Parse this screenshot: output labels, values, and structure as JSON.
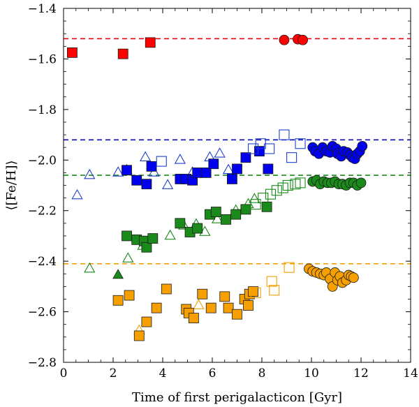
{
  "chart_data": {
    "type": "scatter",
    "title": "",
    "xlabel": "Time of first perigalacticon [Gyr]",
    "ylabel": "⟨[Fe/H]⟩",
    "xlim": [
      0,
      14
    ],
    "ylim": [
      -2.8,
      -1.4
    ],
    "xticks": [
      0,
      2,
      4,
      6,
      8,
      10,
      12,
      14
    ],
    "yticks": [
      -2.8,
      -2.6,
      -2.4,
      -2.2,
      -2.0,
      -1.8,
      -1.6,
      -1.4
    ],
    "xtick_labels": [
      "0",
      "2",
      "4",
      "6",
      "8",
      "10",
      "12",
      "14"
    ],
    "ytick_labels": [
      "−2.8",
      "−2.6",
      "−2.4",
      "−2.2",
      "−2.0",
      "−1.8",
      "−1.6",
      "−1.4"
    ],
    "grid": false,
    "legend": "none",
    "hlines": [
      {
        "name": "red-reference",
        "y": -1.52,
        "color": "#e8000b"
      },
      {
        "name": "blue-reference",
        "y": -1.92,
        "color": "#0a0ab4"
      },
      {
        "name": "green-reference",
        "y": -2.06,
        "color": "#1a8a1a"
      },
      {
        "name": "orange-reference",
        "y": -2.41,
        "color": "#f0a000"
      }
    ],
    "series": [
      {
        "name": "red-filled-squares",
        "marker": "square",
        "filled": true,
        "color": "#ff0000",
        "x": [
          0.35,
          2.4,
          3.5
        ],
        "y": [
          -1.575,
          -1.58,
          -1.535
        ]
      },
      {
        "name": "red-filled-circles",
        "marker": "circle",
        "filled": true,
        "color": "#ff0000",
        "x": [
          8.9,
          9.45,
          9.65
        ],
        "y": [
          -1.525,
          -1.522,
          -1.525
        ]
      },
      {
        "name": "blue-open-triangles",
        "marker": "triangle",
        "filled": false,
        "color": "#1f3fd0",
        "x": [
          0.55,
          1.05,
          2.2,
          2.55,
          3.3,
          3.65,
          4.2,
          4.7,
          5.2,
          5.9,
          6.3,
          6.65
        ],
        "y": [
          -2.14,
          -2.06,
          -2.05,
          -2.04,
          -1.99,
          -2.05,
          -2.1,
          -2.0,
          -2.05,
          -1.99,
          -1.975,
          -2.04
        ]
      },
      {
        "name": "blue-filled-squares",
        "marker": "square",
        "filled": true,
        "color": "#0000ee",
        "x": [
          2.55,
          2.95,
          3.35,
          3.55,
          4.7,
          4.95,
          5.2,
          5.4,
          5.75,
          6.05,
          6.8,
          7.0,
          7.35,
          7.9,
          8.25
        ],
        "y": [
          -2.04,
          -2.08,
          -2.095,
          -2.025,
          -2.075,
          -2.075,
          -2.08,
          -2.05,
          -2.05,
          -2.015,
          -2.075,
          -2.035,
          -1.99,
          -1.965,
          -2.035
        ]
      },
      {
        "name": "blue-open-squares",
        "marker": "square",
        "filled": false,
        "color": "#1f3fd0",
        "x": [
          3.95,
          7.65,
          7.95,
          8.3,
          8.9,
          9.2,
          9.55
        ],
        "y": [
          -2.005,
          -1.955,
          -1.935,
          -1.955,
          -1.9,
          -1.99,
          -1.935
        ]
      },
      {
        "name": "blue-filled-circles",
        "marker": "circle",
        "filled": true,
        "color": "#0000ee",
        "x": [
          10.05,
          10.15,
          10.3,
          10.45,
          10.6,
          10.75,
          10.85,
          11.0,
          11.05,
          11.2,
          11.3,
          11.45,
          11.55,
          11.65,
          11.75,
          11.85,
          11.95,
          12.05
        ],
        "y": [
          -1.95,
          -1.965,
          -1.975,
          -1.95,
          -1.965,
          -1.97,
          -1.945,
          -1.955,
          -1.975,
          -1.985,
          -1.965,
          -1.97,
          -1.98,
          -1.99,
          -1.995,
          -1.975,
          -1.965,
          -1.945
        ]
      },
      {
        "name": "green-open-triangles",
        "marker": "triangle",
        "filled": false,
        "color": "#1a8a1a",
        "x": [
          1.05,
          2.6,
          3.2,
          3.55,
          4.3,
          4.85,
          5.35,
          5.7,
          6.2,
          6.95,
          7.45,
          7.7
        ],
        "y": [
          -2.43,
          -2.39,
          -2.34,
          -2.315,
          -2.3,
          -2.26,
          -2.255,
          -2.285,
          -2.235,
          -2.2,
          -2.175,
          -2.155
        ]
      },
      {
        "name": "green-filled-triangle",
        "marker": "triangle",
        "filled": true,
        "color": "#1a8a1a",
        "x": [
          2.2
        ],
        "y": [
          -2.455
        ]
      },
      {
        "name": "green-filled-squares",
        "marker": "square",
        "filled": true,
        "color": "#1a8a1a",
        "x": [
          2.55,
          2.95,
          3.25,
          3.35,
          3.6,
          4.7,
          5.1,
          5.4,
          5.9,
          6.15,
          6.55,
          6.95,
          7.35,
          8.2
        ],
        "y": [
          -2.3,
          -2.315,
          -2.32,
          -2.345,
          -2.31,
          -2.25,
          -2.285,
          -2.27,
          -2.215,
          -2.205,
          -2.235,
          -2.215,
          -2.195,
          -2.185
        ]
      },
      {
        "name": "green-open-squares",
        "marker": "square",
        "filled": false,
        "color": "#1a8a1a",
        "x": [
          7.75,
          8.05,
          8.35,
          8.6,
          8.85,
          9.05,
          9.35,
          9.55
        ],
        "y": [
          -2.175,
          -2.15,
          -2.135,
          -2.12,
          -2.11,
          -2.1,
          -2.095,
          -2.09
        ]
      },
      {
        "name": "green-filled-circles",
        "marker": "circle",
        "filled": true,
        "color": "#1a8a1a",
        "x": [
          10.05,
          10.2,
          10.35,
          10.5,
          10.65,
          10.8,
          10.95,
          11.1,
          11.25,
          11.4,
          11.55,
          11.7,
          11.85,
          12.0
        ],
        "y": [
          -2.085,
          -2.08,
          -2.095,
          -2.085,
          -2.09,
          -2.09,
          -2.085,
          -2.095,
          -2.095,
          -2.1,
          -2.09,
          -2.09,
          -2.1,
          -2.09
        ]
      },
      {
        "name": "orange-open-triangles",
        "marker": "triangle",
        "filled": false,
        "color": "#f0a000",
        "x": [
          3.05,
          5.45
        ],
        "y": [
          -2.675,
          -2.575
        ]
      },
      {
        "name": "orange-filled-squares",
        "marker": "square",
        "filled": true,
        "color": "#f5a000",
        "x": [
          2.2,
          2.65,
          3.05,
          3.35,
          3.75,
          4.15,
          4.95,
          5.05,
          5.25,
          5.6,
          5.95,
          6.5,
          6.65,
          7.0,
          7.3,
          7.45,
          7.5,
          7.65
        ],
        "y": [
          -2.555,
          -2.535,
          -2.695,
          -2.64,
          -2.585,
          -2.51,
          -2.59,
          -2.605,
          -2.625,
          -2.53,
          -2.585,
          -2.54,
          -2.585,
          -2.61,
          -2.55,
          -2.575,
          -2.53,
          -2.52
        ]
      },
      {
        "name": "orange-open-squares",
        "marker": "square",
        "filled": false,
        "color": "#f0a000",
        "x": [
          7.75,
          8.4,
          8.5,
          9.1
        ],
        "y": [
          -2.525,
          -2.48,
          -2.515,
          -2.425
        ]
      },
      {
        "name": "orange-filled-circles",
        "marker": "circle",
        "filled": true,
        "color": "#f5a000",
        "x": [
          9.9,
          10.05,
          10.2,
          10.35,
          10.5,
          10.6,
          10.75,
          10.85,
          10.95,
          11.05,
          11.15,
          11.25,
          11.4,
          11.5,
          11.6,
          11.7
        ],
        "y": [
          -2.43,
          -2.44,
          -2.445,
          -2.45,
          -2.455,
          -2.445,
          -2.47,
          -2.5,
          -2.445,
          -2.475,
          -2.46,
          -2.485,
          -2.475,
          -2.455,
          -2.46,
          -2.465
        ]
      }
    ]
  }
}
